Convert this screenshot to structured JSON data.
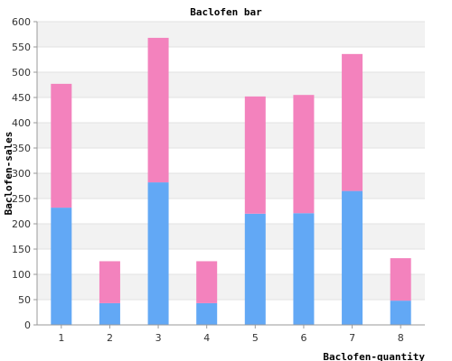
{
  "chart_data": {
    "type": "bar",
    "stacked": true,
    "title": "Baclofen bar",
    "xlabel": "Baclofen-quantity",
    "ylabel": "Baclofen-sales",
    "categories": [
      "1",
      "2",
      "3",
      "4",
      "5",
      "6",
      "7",
      "8"
    ],
    "series": [
      {
        "values": [
          232,
          43,
          282,
          43,
          220,
          221,
          265,
          48
        ],
        "color": "#62a8f5"
      },
      {
        "values": [
          245,
          83,
          286,
          83,
          232,
          234,
          271,
          84
        ],
        "color": "#f382bd"
      }
    ],
    "ylim": [
      0,
      600
    ],
    "yticks": [
      0,
      50,
      100,
      150,
      200,
      250,
      300,
      350,
      400,
      450,
      500,
      550,
      600
    ],
    "grid": true,
    "band_colors": [
      "#ffffff",
      "#f2f2f2"
    ]
  }
}
